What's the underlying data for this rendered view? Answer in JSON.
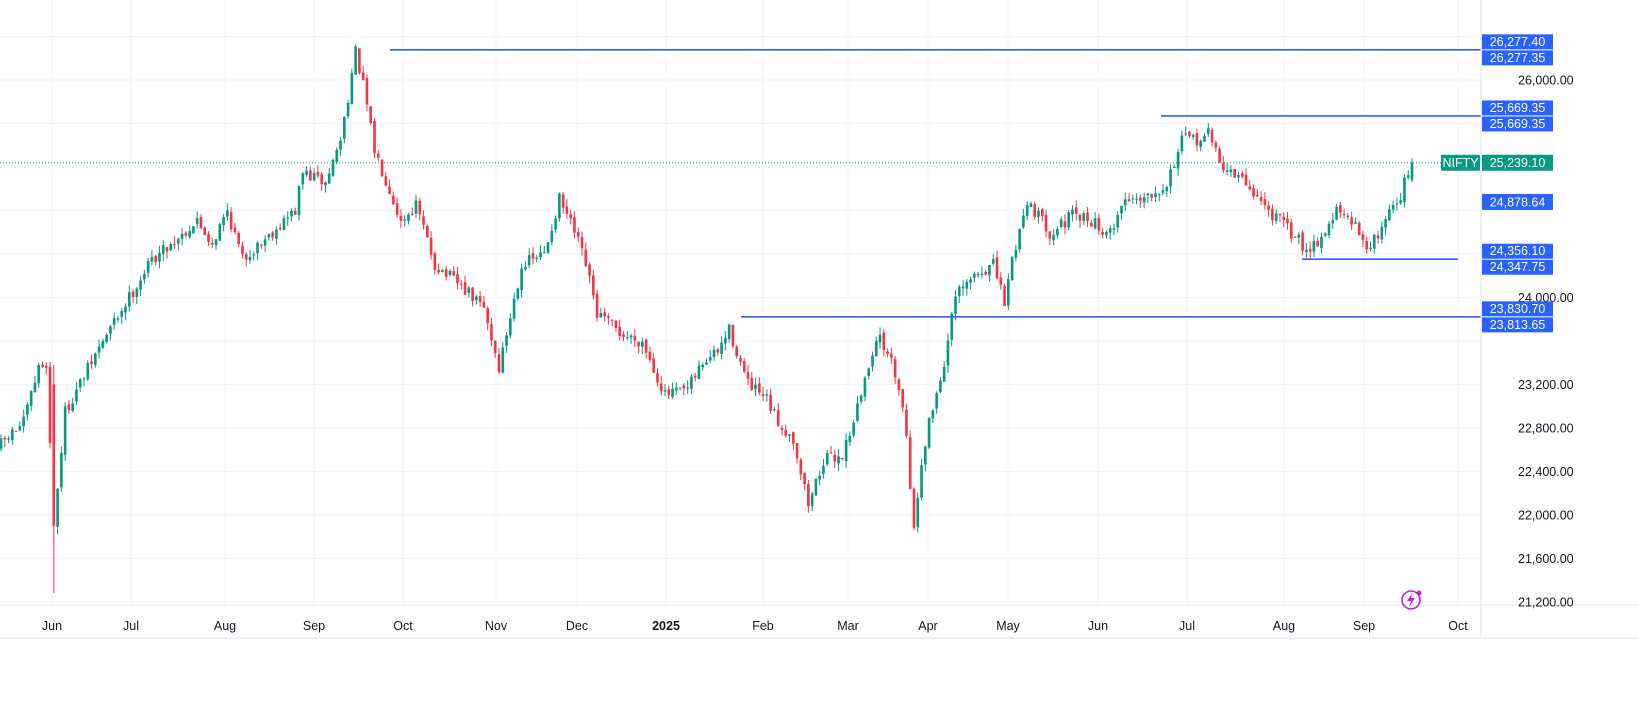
{
  "chart_data": {
    "type": "candlestick",
    "symbol": "NIFTY",
    "last_price": "25,239.10",
    "ylim": [
      21000,
      26600
    ],
    "y_ticks": [
      {
        "value": 21200,
        "label": "21,200.00"
      },
      {
        "value": 21600,
        "label": "21,600.00"
      },
      {
        "value": 22000,
        "label": "22,000.00"
      },
      {
        "value": 22400,
        "label": "22,400.00"
      },
      {
        "value": 22800,
        "label": "22,800.00"
      },
      {
        "value": 23200,
        "label": "23,200.00"
      },
      {
        "value": 24000,
        "label": "24,000.00"
      },
      {
        "value": 26000,
        "label": "26,000.00"
      }
    ],
    "x_ticks": [
      {
        "label": "Jun",
        "bold": false
      },
      {
        "label": "Jul",
        "bold": false
      },
      {
        "label": "Aug",
        "bold": false
      },
      {
        "label": "Sep",
        "bold": false
      },
      {
        "label": "Oct",
        "bold": false
      },
      {
        "label": "Nov",
        "bold": false
      },
      {
        "label": "Dec",
        "bold": false
      },
      {
        "label": "2025",
        "bold": true
      },
      {
        "label": "Feb",
        "bold": false
      },
      {
        "label": "Mar",
        "bold": false
      },
      {
        "label": "Apr",
        "bold": false
      },
      {
        "label": "May",
        "bold": false
      },
      {
        "label": "Jun",
        "bold": false
      },
      {
        "label": "Jul",
        "bold": false
      },
      {
        "label": "Aug",
        "bold": false
      },
      {
        "label": "Sep",
        "bold": false
      },
      {
        "label": "Oct",
        "bold": false
      }
    ],
    "horizontal_levels": [
      {
        "name": "all-time-high",
        "price": 26277.38,
        "labels": [
          "26,277.40",
          "26,277.35"
        ]
      },
      {
        "name": "jun-july-high",
        "price": 25669.35,
        "labels": [
          "25,669.35",
          "25,669.35"
        ]
      },
      {
        "name": "august-low",
        "price": 24352.0,
        "labels": [
          "24,356.10",
          "24,347.75"
        ]
      },
      {
        "name": "feb-mar-resistance",
        "price": 23822.0,
        "labels": [
          "23,830.70",
          "23,813.65"
        ]
      }
    ],
    "marker_label": "24,878.64",
    "marker_price": 24878.64,
    "keypoints": [
      [
        0,
        22650
      ],
      [
        6,
        22850
      ],
      [
        10,
        23350
      ],
      [
        12,
        23400
      ],
      [
        14,
        21900
      ],
      [
        17,
        22950
      ],
      [
        27,
        23600
      ],
      [
        40,
        24350
      ],
      [
        52,
        24700
      ],
      [
        56,
        24500
      ],
      [
        60,
        24800
      ],
      [
        64,
        24350
      ],
      [
        78,
        24800
      ],
      [
        80,
        25150
      ],
      [
        86,
        25050
      ],
      [
        90,
        25450
      ],
      [
        94,
        26250
      ],
      [
        96,
        25950
      ],
      [
        99,
        25350
      ],
      [
        103,
        25000
      ],
      [
        106,
        24700
      ],
      [
        110,
        24850
      ],
      [
        115,
        24300
      ],
      [
        122,
        24100
      ],
      [
        128,
        23900
      ],
      [
        132,
        23350
      ],
      [
        138,
        24300
      ],
      [
        144,
        24400
      ],
      [
        148,
        24900
      ],
      [
        152,
        24600
      ],
      [
        155,
        24300
      ],
      [
        158,
        23850
      ],
      [
        165,
        23650
      ],
      [
        170,
        23600
      ],
      [
        176,
        23100
      ],
      [
        182,
        23150
      ],
      [
        186,
        23400
      ],
      [
        190,
        23500
      ],
      [
        193,
        23700
      ],
      [
        198,
        23200
      ],
      [
        203,
        23050
      ],
      [
        206,
        22850
      ],
      [
        210,
        22700
      ],
      [
        214,
        22100
      ],
      [
        218,
        22500
      ],
      [
        223,
        22550
      ],
      [
        228,
        23100
      ],
      [
        232,
        23650
      ],
      [
        235,
        23500
      ],
      [
        238,
        23200
      ],
      [
        240,
        22750
      ],
      [
        242,
        21850
      ],
      [
        244,
        22500
      ],
      [
        246,
        22850
      ],
      [
        250,
        23400
      ],
      [
        253,
        24000
      ],
      [
        258,
        24200
      ],
      [
        263,
        24300
      ],
      [
        266,
        23950
      ],
      [
        268,
        24350
      ],
      [
        272,
        24900
      ],
      [
        278,
        24600
      ],
      [
        284,
        24750
      ],
      [
        290,
        24700
      ],
      [
        293,
        24550
      ],
      [
        298,
        24900
      ],
      [
        304,
        24950
      ],
      [
        309,
        25050
      ],
      [
        313,
        25450
      ],
      [
        317,
        25450
      ],
      [
        320,
        25500
      ],
      [
        324,
        25200
      ],
      [
        330,
        25050
      ],
      [
        336,
        24800
      ],
      [
        342,
        24600
      ],
      [
        346,
        24450
      ],
      [
        350,
        24550
      ],
      [
        354,
        24800
      ],
      [
        359,
        24650
      ],
      [
        363,
        24450
      ],
      [
        368,
        24800
      ],
      [
        371,
        24950
      ],
      [
        374,
        25239
      ]
    ]
  }
}
